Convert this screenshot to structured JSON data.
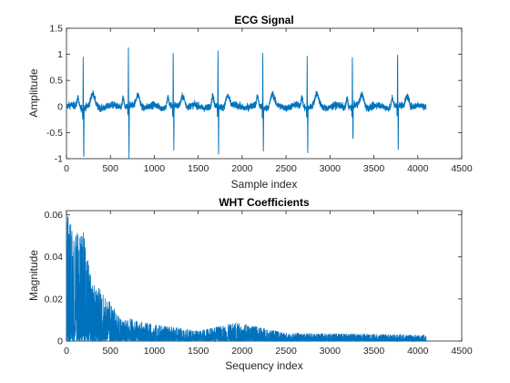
{
  "chart_data": [
    {
      "type": "line",
      "title": "ECG Signal",
      "xlabel": "Sample index",
      "ylabel": "Amplitude",
      "xlim": [
        0,
        4500
      ],
      "ylim": [
        -1,
        1.5
      ],
      "xticks": [
        "0",
        "500",
        "1000",
        "1500",
        "2000",
        "2500",
        "3000",
        "3500",
        "4000",
        "4500"
      ],
      "yticks": [
        "-1",
        "-0.5",
        "0",
        "0.5",
        "1",
        "1.5"
      ],
      "color": "#0072BD",
      "n_samples": 4096,
      "r_peak_positions": [
        190,
        705,
        1215,
        1725,
        2235,
        2740,
        3255,
        3770
      ],
      "r_peak_amplitudes": [
        0.97,
        1.08,
        0.97,
        1.1,
        1.0,
        0.98,
        0.95,
        0.99
      ],
      "s_trough_amplitudes": [
        -0.97,
        -0.95,
        -0.85,
        -0.97,
        -0.82,
        -0.85,
        -0.7,
        -0.85
      ],
      "baseline_noise_amplitude": 0.12
    },
    {
      "type": "line",
      "title": "WHT Coefficients",
      "xlabel": "Sequency index",
      "ylabel": "Magnitude",
      "xlim": [
        0,
        4500
      ],
      "ylim": [
        0,
        0.062
      ],
      "xticks": [
        "0",
        "500",
        "1000",
        "1500",
        "2000",
        "2500",
        "3000",
        "3500",
        "4000",
        "4500"
      ],
      "yticks": [
        "0",
        "0.02",
        "0.04",
        "0.06"
      ],
      "color": "#0072BD",
      "n_coefficients": 4096,
      "envelope": [
        {
          "x": 0,
          "y": 0.062
        },
        {
          "x": 100,
          "y": 0.05
        },
        {
          "x": 180,
          "y": 0.056
        },
        {
          "x": 280,
          "y": 0.03
        },
        {
          "x": 400,
          "y": 0.025
        },
        {
          "x": 600,
          "y": 0.012
        },
        {
          "x": 1000,
          "y": 0.008
        },
        {
          "x": 1500,
          "y": 0.005
        },
        {
          "x": 1950,
          "y": 0.009
        },
        {
          "x": 2500,
          "y": 0.004
        },
        {
          "x": 4096,
          "y": 0.003
        }
      ]
    }
  ]
}
